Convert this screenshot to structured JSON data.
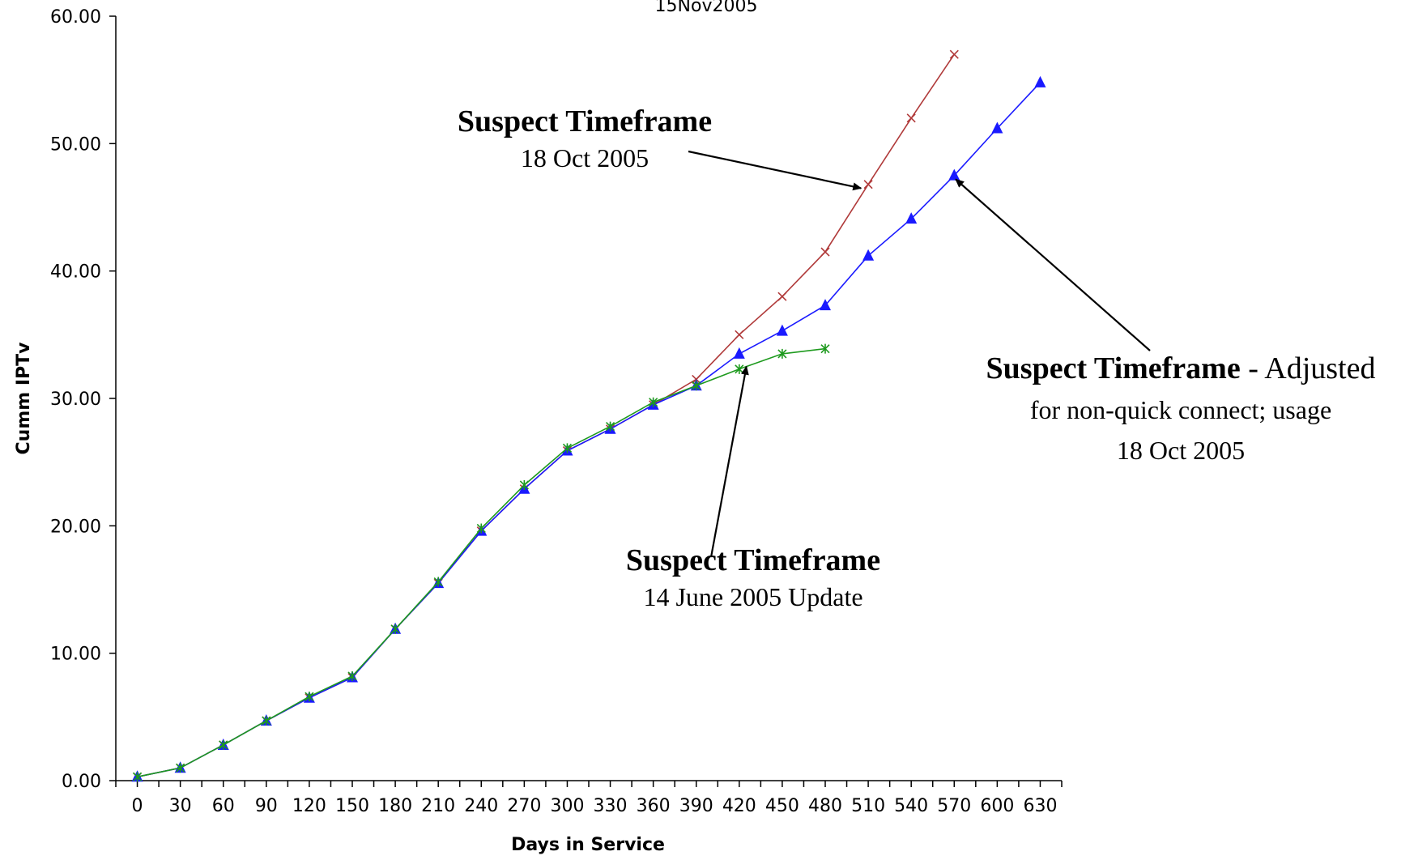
{
  "chart_data": {
    "type": "line",
    "title": "15Nov2005",
    "xlabel": "Days in Service",
    "ylabel": "Cumm IPTv",
    "xlim": [
      -15,
      645
    ],
    "ylim": [
      0,
      60
    ],
    "xticks": [
      "0",
      "30",
      "60",
      "90",
      "120",
      "150",
      "180",
      "210",
      "240",
      "270",
      "300",
      "330",
      "360",
      "390",
      "420",
      "450",
      "480",
      "510",
      "540",
      "570",
      "600",
      "630"
    ],
    "yticks": [
      "0.00",
      "10.00",
      "20.00",
      "30.00",
      "40.00",
      "50.00",
      "60.00"
    ],
    "grid": false,
    "series": [
      {
        "marker": "x",
        "color": "#b03a3a",
        "x": [
          0,
          30,
          60,
          90,
          120,
          150,
          180,
          210,
          240,
          270,
          300,
          330,
          360,
          390,
          420,
          450,
          480,
          510,
          540,
          570
        ],
        "y": [
          0.3,
          1.0,
          2.8,
          4.7,
          6.5,
          8.1,
          11.9,
          15.5,
          19.6,
          22.9,
          25.9,
          27.6,
          29.5,
          31.5,
          35.0,
          38.0,
          41.5,
          46.8,
          52.0,
          57.0
        ]
      },
      {
        "marker": "triangle",
        "color": "#1a1aff",
        "x": [
          0,
          30,
          60,
          90,
          120,
          150,
          180,
          210,
          240,
          270,
          300,
          330,
          360,
          390,
          420,
          450,
          480,
          510,
          540,
          570,
          600,
          630
        ],
        "y": [
          0.3,
          1.0,
          2.8,
          4.7,
          6.5,
          8.1,
          11.9,
          15.5,
          19.6,
          22.9,
          25.9,
          27.6,
          29.5,
          31.0,
          33.5,
          35.3,
          37.3,
          41.2,
          44.1,
          47.5,
          51.2,
          54.8
        ]
      },
      {
        "marker": "asterisk",
        "color": "#1e9a1e",
        "x": [
          0,
          30,
          60,
          90,
          120,
          150,
          180,
          210,
          240,
          270,
          300,
          330,
          360,
          390,
          420,
          450,
          480
        ],
        "y": [
          0.3,
          1.0,
          2.8,
          4.7,
          6.6,
          8.2,
          11.9,
          15.6,
          19.8,
          23.2,
          26.1,
          27.8,
          29.7,
          31.0,
          32.3,
          33.5,
          33.9
        ]
      }
    ],
    "annotations": [
      {
        "name": "annotation-suspect-timeframe-red",
        "title": "Suspect Timeframe",
        "title_suffix": "",
        "lines": [
          "18 Oct 2005"
        ],
        "arrow_to": [
          505,
          46.5
        ]
      },
      {
        "name": "annotation-suspect-timeframe-green",
        "title": "Suspect Timeframe",
        "title_suffix": "",
        "lines": [
          "14 June 2005 Update"
        ],
        "arrow_to": [
          425,
          32.5
        ]
      },
      {
        "name": "annotation-suspect-timeframe-blue",
        "title": "Suspect Timeframe",
        "title_suffix": " - Adjusted",
        "lines": [
          "for non-quick connect; usage",
          "18 Oct 2005"
        ],
        "arrow_to": [
          571,
          47.2
        ]
      }
    ]
  }
}
